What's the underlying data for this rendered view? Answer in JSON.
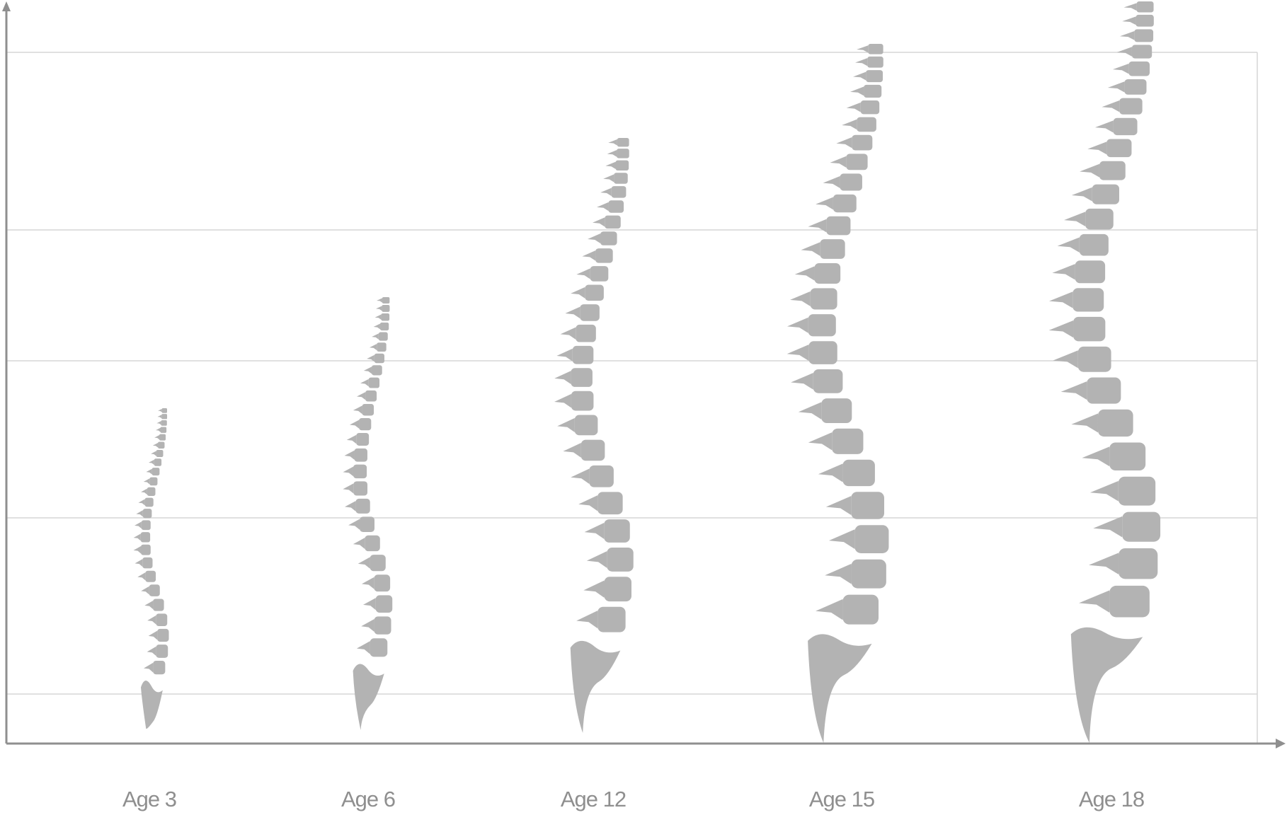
{
  "colors": {
    "spine": "#b3b3b3",
    "axis": "#8f8f8f",
    "grid": "#d6d6d6",
    "label": "#8f8f8f"
  },
  "categories": [
    {
      "label": "Age 3"
    },
    {
      "label": "Age 6"
    },
    {
      "label": "Age 12"
    },
    {
      "label": "Age 15"
    },
    {
      "label": "Age 18"
    }
  ]
}
